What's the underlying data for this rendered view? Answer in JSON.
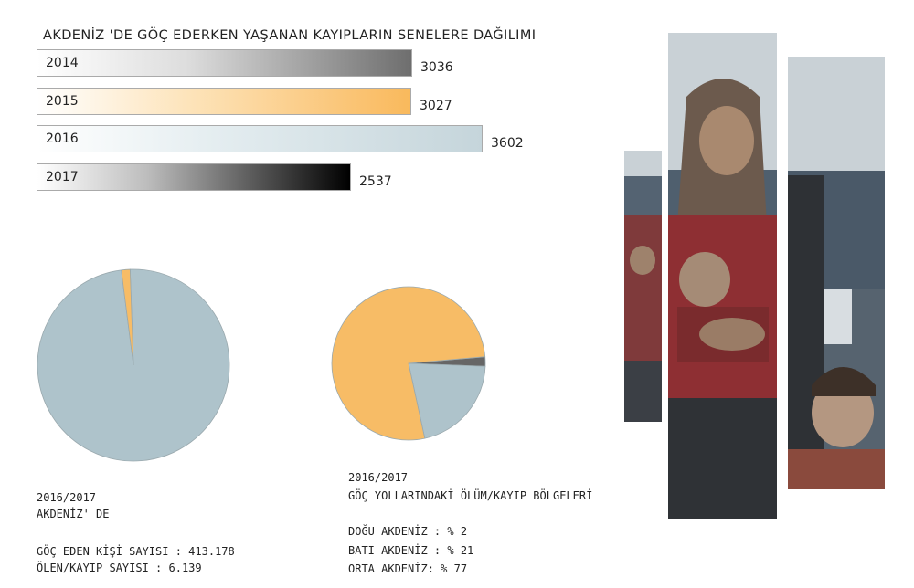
{
  "chart_data": [
    {
      "type": "bar",
      "title": "AKDENİZ 'DE GÖÇ EDERKEN YAŞANAN KAYIPLARIN SENELERE DAĞILIMI",
      "orientation": "horizontal",
      "categories": [
        "2014",
        "2015",
        "2016",
        "2017"
      ],
      "values": [
        3036,
        3027,
        3602,
        2537
      ],
      "value_labels": [
        "3036",
        "3027",
        "3602",
        "2537"
      ],
      "colors": [
        "#777777",
        "#f9b95c",
        "#c9d8de",
        "#111111"
      ]
    },
    {
      "type": "pie",
      "labels": [
        "GÖÇ EDEN",
        "ÖLEN/KAYIP"
      ],
      "values": [
        413178,
        6139
      ],
      "colors": [
        "#aec3cb",
        "#f7bc66"
      ]
    },
    {
      "type": "pie",
      "labels": [
        "DOĞU AKDENİZ",
        "BATI AKDENİZ",
        "ORTA AKDENİZ"
      ],
      "values": [
        2,
        21,
        77
      ],
      "colors": [
        "#666666",
        "#aec3cb",
        "#f7bc66"
      ]
    }
  ],
  "left_caption": {
    "line1": "2016/2017",
    "line2": "AKDENİZ' DE",
    "stat1": "GÖÇ EDEN KİŞİ SAYISI : 413.178",
    "stat2": "ÖLEN/KAYIP SAYISI : 6.139"
  },
  "right_caption": {
    "line1": "2016/2017",
    "line2": "GÖÇ YOLLARINDAKİ ÖLÜM/KAYIP BÖLGELERİ",
    "stat1": "DOĞU AKDENİZ : % 2",
    "stat2": "BATI AKDENİZ : % 21",
    "stat3": "ORTA AKDENİZ: % 77"
  },
  "photo": {
    "description_icon": "refugee-photo-collage",
    "colors": {
      "sky": "#c9d1d6",
      "sea": "#4f5f6e",
      "vest": "#8e2f33",
      "skin": "#a9896f",
      "scarf": "#6c5a4d"
    }
  }
}
